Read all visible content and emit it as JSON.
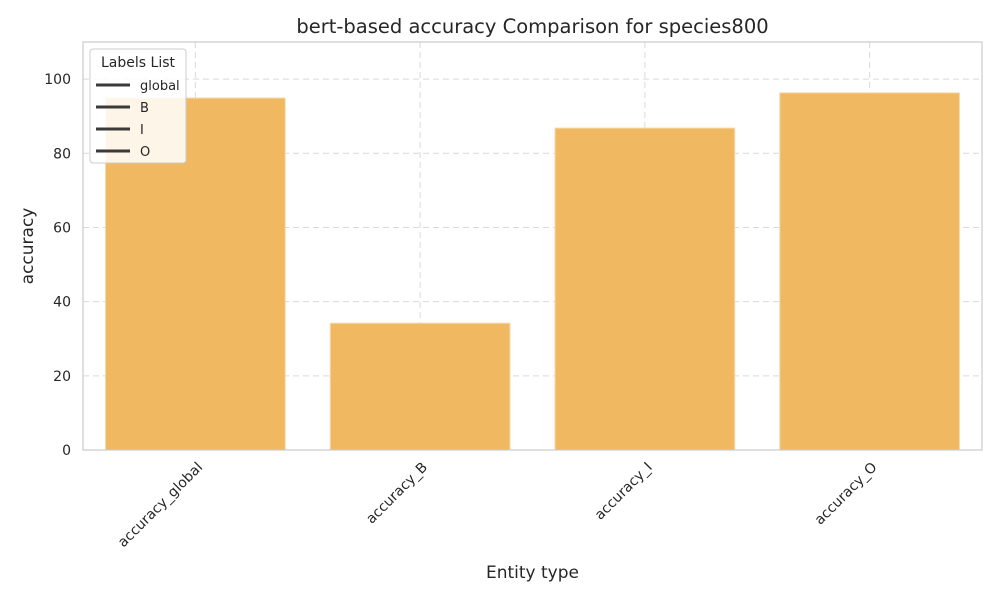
{
  "chart_data": {
    "type": "bar",
    "title": "bert-based  accuracy Comparison for species800",
    "xlabel": "Entity type",
    "ylabel": "accuracy",
    "categories": [
      "accuracy_global",
      "accuracy_B",
      "accuracy_I",
      "accuracy_O"
    ],
    "values": [
      94.9,
      34.2,
      86.8,
      96.3
    ],
    "ylim": [
      0,
      110
    ],
    "yticks": [
      0,
      20,
      40,
      60,
      80,
      100
    ],
    "grid": true,
    "bar_color": "#f0b860",
    "legend": {
      "title": "Labels List",
      "placement": "top-left",
      "entries": [
        "global",
        "B",
        "I",
        "O"
      ]
    }
  }
}
